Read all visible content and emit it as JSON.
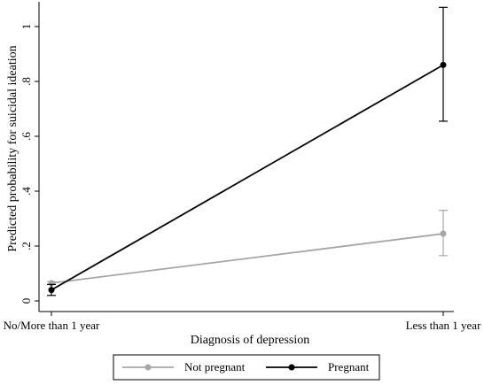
{
  "chart_data": {
    "type": "line",
    "categories": [
      "No/More than 1 year",
      "Less than 1 year"
    ],
    "xlabel": "Diagnosis of depression",
    "ylabel": "Predicted probability for suicidal ideation",
    "ylim": [
      0,
      1
    ],
    "yticks": [
      0,
      0.2,
      0.4,
      0.6,
      0.8,
      1
    ],
    "ytick_labels": [
      "0",
      ".2",
      ".4",
      ".6",
      ".8",
      "1"
    ],
    "grid": false,
    "legend_position": "bottom",
    "series": [
      {
        "name": "Not pregnant",
        "color": "#a6a6a6",
        "values": [
          0.065,
          0.245
        ],
        "ci_low": [
          0.06,
          0.165
        ],
        "ci_high": [
          0.07,
          0.33
        ]
      },
      {
        "name": "Pregnant",
        "color": "#000000",
        "values": [
          0.04,
          0.86
        ],
        "ci_low": [
          0.02,
          0.655
        ],
        "ci_high": [
          0.06,
          1.07
        ]
      }
    ]
  }
}
